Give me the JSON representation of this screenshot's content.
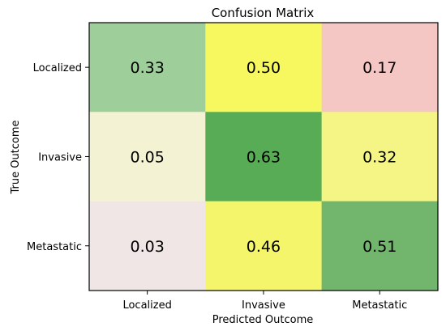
{
  "chart_data": {
    "type": "heatmap",
    "title": "Confusion Matrix",
    "xlabel": "Predicted Outcome",
    "ylabel": "True Outcome",
    "x_categories": [
      "Localized",
      "Invasive",
      "Metastatic"
    ],
    "y_categories": [
      "Localized",
      "Invasive",
      "Metastatic"
    ],
    "values": [
      [
        0.33,
        0.5,
        0.17
      ],
      [
        0.05,
        0.63,
        0.32
      ],
      [
        0.03,
        0.46,
        0.51
      ]
    ],
    "value_labels": [
      [
        "0.33",
        "0.50",
        "0.17"
      ],
      [
        "0.05",
        "0.63",
        "0.32"
      ],
      [
        "0.03",
        "0.46",
        "0.51"
      ]
    ],
    "cell_colors": [
      [
        "#9ecf9b",
        "#f7f760",
        "#f4c6c4"
      ],
      [
        "#f3f2d2",
        "#57ac55",
        "#f5f586"
      ],
      [
        "#f1e6e6",
        "#f5f56c",
        "#71b66c"
      ]
    ]
  }
}
